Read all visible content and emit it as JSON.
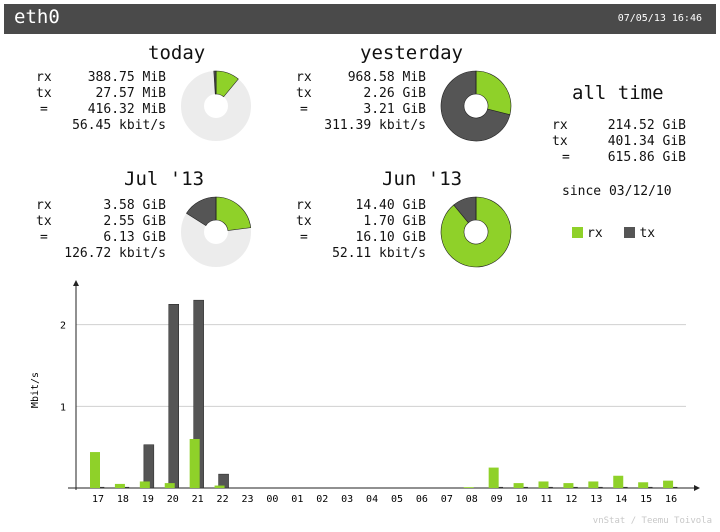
{
  "header": {
    "interface": "eth0",
    "timestamp": "07/05/13 16:46"
  },
  "colors": {
    "rx": "#8fd129",
    "tx": "#555555",
    "donut_bg": "#ececec",
    "bar_bg": "#4a4a4a"
  },
  "summaries": [
    {
      "id": "today",
      "title": "today",
      "rx": "388.75 MiB",
      "tx": "27.57 MiB",
      "total": "416.32 MiB",
      "rate": "56.45 kbit/s",
      "rx_fraction": 0.11,
      "tx_fraction": 0.01
    },
    {
      "id": "yesterday",
      "title": "yesterday",
      "rx": "968.58 MiB",
      "tx": "2.26 GiB",
      "total": "3.21 GiB",
      "rate": "311.39 kbit/s",
      "rx_fraction": 0.29,
      "tx_fraction": 0.71
    },
    {
      "id": "month-jul",
      "title": "Jul '13",
      "rx": "3.58 GiB",
      "tx": "2.55 GiB",
      "total": "6.13 GiB",
      "rate": "126.72 kbit/s",
      "rx_fraction": 0.23,
      "tx_fraction": 0.16
    },
    {
      "id": "month-jun",
      "title": "Jun '13",
      "rx": "14.40 GiB",
      "tx": "1.70 GiB",
      "total": "16.10 GiB",
      "rate": "52.11 kbit/s",
      "rx_fraction": 0.89,
      "tx_fraction": 0.11
    }
  ],
  "alltime": {
    "title": "all time",
    "rx": "214.52 GiB",
    "tx": "401.34 GiB",
    "total": "615.86 GiB",
    "since": "since 03/12/10"
  },
  "labels": {
    "rx": "rx",
    "tx": "tx",
    "eq": "="
  },
  "legend": {
    "rx": "rx",
    "tx": "tx"
  },
  "chart_data": {
    "type": "bar",
    "ylabel": "Mbit/s",
    "ylim": [
      0,
      2.4
    ],
    "yticks": [
      1,
      2
    ],
    "grid": true,
    "categories": [
      "17",
      "18",
      "19",
      "20",
      "21",
      "22",
      "23",
      "00",
      "01",
      "02",
      "03",
      "04",
      "05",
      "06",
      "07",
      "08",
      "09",
      "10",
      "11",
      "12",
      "13",
      "14",
      "15",
      "16"
    ],
    "series": [
      {
        "name": "rx",
        "values": [
          0.44,
          0.05,
          0.08,
          0.06,
          0.6,
          0.03,
          0,
          0,
          0,
          0,
          0,
          0,
          0,
          0,
          0,
          0.01,
          0.25,
          0.06,
          0.08,
          0.06,
          0.08,
          0.15,
          0.07,
          0.09
        ]
      },
      {
        "name": "tx",
        "values": [
          0.01,
          0.01,
          0.53,
          2.25,
          2.3,
          0.17,
          0,
          0,
          0,
          0,
          0,
          0,
          0,
          0,
          0,
          0,
          0.01,
          0.01,
          0.01,
          0.01,
          0.01,
          0.01,
          0.01,
          0.01
        ]
      }
    ]
  },
  "footer": "vnStat / Teemu Toivola"
}
